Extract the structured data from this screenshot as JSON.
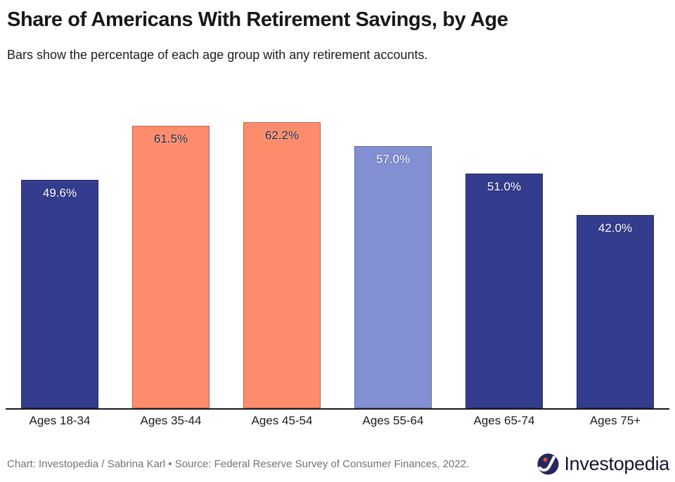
{
  "chart_data": {
    "type": "bar",
    "title": "Share of Americans With Retirement Savings, by Age",
    "subtitle": "Bars show the percentage of each age group with any retirement accounts.",
    "categories": [
      "Ages 18-34",
      "Ages 35-44",
      "Ages 45-54",
      "Ages 55-64",
      "Ages 65-74",
      "Ages 75+"
    ],
    "values": [
      49.6,
      61.5,
      62.2,
      57.0,
      51.0,
      42.0
    ],
    "value_labels": [
      "49.6%",
      "61.5%",
      "62.2%",
      "57.0%",
      "51.0%",
      "42.0%"
    ],
    "bar_colors": [
      "#343d8d",
      "#fd8c6c",
      "#fd8c6c",
      "#8290d3",
      "#343d8d",
      "#343d8d"
    ],
    "value_label_colors": [
      "#ffffff",
      "#23253f",
      "#23253f",
      "#ffffff",
      "#ffffff",
      "#ffffff"
    ],
    "xlabel": "",
    "ylabel": "",
    "ylim": [
      0,
      67
    ],
    "grid": false,
    "legend": "none"
  },
  "footer": {
    "attribution": "Chart: Investopedia / Sabrina Karl • Source: Federal Reserve Survey of Consumer Finances, 2022.",
    "logo_text": "Investopedia"
  },
  "colors": {
    "navy": "#343d8d",
    "salmon": "#fd8c6c",
    "periwinkle": "#8290d3",
    "axis_line": "#17181e",
    "footer_text": "#737373",
    "logo_circle": "#26255e",
    "logo_dot": "#df4b32"
  }
}
